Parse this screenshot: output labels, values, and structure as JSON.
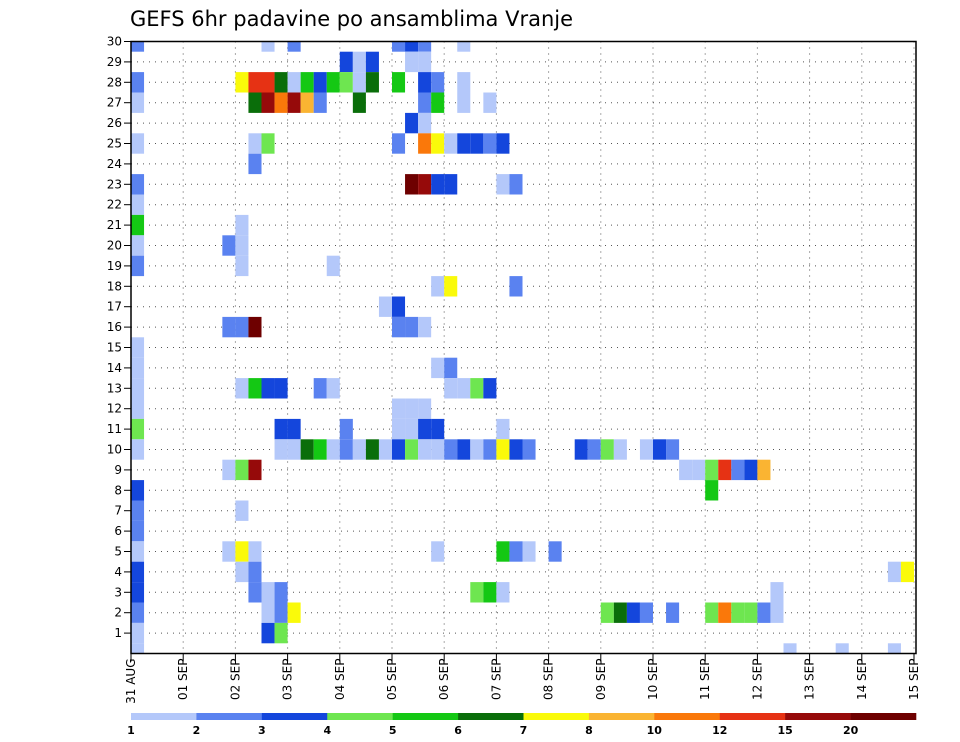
{
  "chart_data": {
    "type": "heatmap",
    "title": "GEFS 6hr padavine po ansamblima Vranje",
    "y_ticks": [
      "1",
      "2",
      "3",
      "4",
      "5",
      "6",
      "7",
      "8",
      "9",
      "10",
      "11",
      "12",
      "13",
      "14",
      "15",
      "16",
      "17",
      "18",
      "19",
      "20",
      "21",
      "22",
      "23",
      "24",
      "25",
      "26",
      "27",
      "28",
      "29",
      "30"
    ],
    "y_range": [
      0,
      30
    ],
    "x_ticks": [
      "31 AUG",
      "01 SEP",
      "02 SEP",
      "03 SEP",
      "04 SEP",
      "05 SEP",
      "06 SEP",
      "07 SEP",
      "08 SEP",
      "09 SEP",
      "10 SEP",
      "11 SEP",
      "12 SEP",
      "13 SEP",
      "14 SEP",
      "15 SEP"
    ],
    "x_step_hours": 6,
    "steps_per_day": 4,
    "num_steps": 60,
    "grid": true,
    "legend": {
      "placement": "bottom",
      "labels": [
        "1",
        "2",
        "3",
        "4",
        "5",
        "6",
        "7",
        "8",
        "10",
        "12",
        "15",
        "20"
      ],
      "colors": [
        "#B4C8FA",
        "#5A82F0",
        "#1446DC",
        "#6EE650",
        "#14C814",
        "#0A6E0A",
        "#FAFA0A",
        "#FAB432",
        "#FA780A",
        "#E63214",
        "#960A0A",
        "#6E0000"
      ]
    },
    "cells": [
      {
        "m": 30,
        "s": 1,
        "c": 1
      },
      {
        "m": 30,
        "s": 11,
        "c": 0
      },
      {
        "m": 30,
        "s": 13,
        "c": 1
      },
      {
        "m": 30,
        "s": 21,
        "c": 1
      },
      {
        "m": 30,
        "s": 22,
        "c": 2
      },
      {
        "m": 30,
        "s": 23,
        "c": 1
      },
      {
        "m": 30,
        "s": 26,
        "c": 0
      },
      {
        "m": 29,
        "s": 17,
        "c": 2
      },
      {
        "m": 29,
        "s": 18,
        "c": 0
      },
      {
        "m": 29,
        "s": 19,
        "c": 2
      },
      {
        "m": 29,
        "s": 22,
        "c": 0
      },
      {
        "m": 29,
        "s": 23,
        "c": 0
      },
      {
        "m": 28,
        "s": 1,
        "c": 1
      },
      {
        "m": 28,
        "s": 9,
        "c": 6
      },
      {
        "m": 28,
        "s": 10,
        "c": 9
      },
      {
        "m": 28,
        "s": 11,
        "c": 9
      },
      {
        "m": 28,
        "s": 12,
        "c": 5
      },
      {
        "m": 28,
        "s": 13,
        "c": 0
      },
      {
        "m": 28,
        "s": 14,
        "c": 4
      },
      {
        "m": 28,
        "s": 15,
        "c": 2
      },
      {
        "m": 28,
        "s": 16,
        "c": 4
      },
      {
        "m": 28,
        "s": 17,
        "c": 3
      },
      {
        "m": 28,
        "s": 18,
        "c": 0
      },
      {
        "m": 28,
        "s": 19,
        "c": 5
      },
      {
        "m": 28,
        "s": 21,
        "c": 4
      },
      {
        "m": 28,
        "s": 23,
        "c": 2
      },
      {
        "m": 28,
        "s": 24,
        "c": 1
      },
      {
        "m": 28,
        "s": 26,
        "c": 0
      },
      {
        "m": 27,
        "s": 1,
        "c": 0
      },
      {
        "m": 27,
        "s": 10,
        "c": 5
      },
      {
        "m": 27,
        "s": 11,
        "c": 10
      },
      {
        "m": 27,
        "s": 12,
        "c": 8
      },
      {
        "m": 27,
        "s": 13,
        "c": 10
      },
      {
        "m": 27,
        "s": 14,
        "c": 7
      },
      {
        "m": 27,
        "s": 15,
        "c": 1
      },
      {
        "m": 27,
        "s": 18,
        "c": 5
      },
      {
        "m": 27,
        "s": 23,
        "c": 1
      },
      {
        "m": 27,
        "s": 24,
        "c": 4
      },
      {
        "m": 27,
        "s": 26,
        "c": 0
      },
      {
        "m": 27,
        "s": 28,
        "c": 0
      },
      {
        "m": 26,
        "s": 22,
        "c": 2
      },
      {
        "m": 26,
        "s": 23,
        "c": 0
      },
      {
        "m": 25,
        "s": 1,
        "c": 0
      },
      {
        "m": 25,
        "s": 10,
        "c": 0
      },
      {
        "m": 25,
        "s": 11,
        "c": 3
      },
      {
        "m": 25,
        "s": 21,
        "c": 1
      },
      {
        "m": 25,
        "s": 23,
        "c": 8
      },
      {
        "m": 25,
        "s": 24,
        "c": 6
      },
      {
        "m": 25,
        "s": 25,
        "c": 0
      },
      {
        "m": 25,
        "s": 26,
        "c": 2
      },
      {
        "m": 25,
        "s": 27,
        "c": 2
      },
      {
        "m": 25,
        "s": 28,
        "c": 1
      },
      {
        "m": 25,
        "s": 29,
        "c": 2
      },
      {
        "m": 24,
        "s": 10,
        "c": 1
      },
      {
        "m": 23,
        "s": 1,
        "c": 1
      },
      {
        "m": 23,
        "s": 22,
        "c": 11
      },
      {
        "m": 23,
        "s": 23,
        "c": 10
      },
      {
        "m": 23,
        "s": 24,
        "c": 2
      },
      {
        "m": 23,
        "s": 25,
        "c": 2
      },
      {
        "m": 23,
        "s": 29,
        "c": 0
      },
      {
        "m": 23,
        "s": 30,
        "c": 1
      },
      {
        "m": 22,
        "s": 1,
        "c": 0
      },
      {
        "m": 21,
        "s": 1,
        "c": 4
      },
      {
        "m": 21,
        "s": 9,
        "c": 0
      },
      {
        "m": 20,
        "s": 1,
        "c": 0
      },
      {
        "m": 20,
        "s": 8,
        "c": 1
      },
      {
        "m": 20,
        "s": 9,
        "c": 0
      },
      {
        "m": 19,
        "s": 1,
        "c": 1
      },
      {
        "m": 19,
        "s": 9,
        "c": 0
      },
      {
        "m": 19,
        "s": 16,
        "c": 0
      },
      {
        "m": 18,
        "s": 24,
        "c": 0
      },
      {
        "m": 18,
        "s": 25,
        "c": 6
      },
      {
        "m": 18,
        "s": 30,
        "c": 1
      },
      {
        "m": 17,
        "s": 20,
        "c": 0
      },
      {
        "m": 17,
        "s": 21,
        "c": 2
      },
      {
        "m": 16,
        "s": 8,
        "c": 1
      },
      {
        "m": 16,
        "s": 9,
        "c": 1
      },
      {
        "m": 16,
        "s": 10,
        "c": 11
      },
      {
        "m": 16,
        "s": 21,
        "c": 1
      },
      {
        "m": 16,
        "s": 22,
        "c": 1
      },
      {
        "m": 16,
        "s": 23,
        "c": 0
      },
      {
        "m": 15,
        "s": 1,
        "c": 0
      },
      {
        "m": 14,
        "s": 1,
        "c": 0
      },
      {
        "m": 14,
        "s": 24,
        "c": 0
      },
      {
        "m": 14,
        "s": 25,
        "c": 1
      },
      {
        "m": 13,
        "s": 1,
        "c": 0
      },
      {
        "m": 13,
        "s": 9,
        "c": 0
      },
      {
        "m": 13,
        "s": 10,
        "c": 4
      },
      {
        "m": 13,
        "s": 11,
        "c": 2
      },
      {
        "m": 13,
        "s": 12,
        "c": 2
      },
      {
        "m": 13,
        "s": 15,
        "c": 1
      },
      {
        "m": 13,
        "s": 16,
        "c": 0
      },
      {
        "m": 13,
        "s": 25,
        "c": 0
      },
      {
        "m": 13,
        "s": 26,
        "c": 0
      },
      {
        "m": 13,
        "s": 27,
        "c": 3
      },
      {
        "m": 13,
        "s": 28,
        "c": 2
      },
      {
        "m": 12,
        "s": 1,
        "c": 0
      },
      {
        "m": 12,
        "s": 21,
        "c": 0
      },
      {
        "m": 12,
        "s": 22,
        "c": 0
      },
      {
        "m": 12,
        "s": 23,
        "c": 0
      },
      {
        "m": 11,
        "s": 1,
        "c": 3
      },
      {
        "m": 11,
        "s": 12,
        "c": 2
      },
      {
        "m": 11,
        "s": 13,
        "c": 2
      },
      {
        "m": 11,
        "s": 17,
        "c": 1
      },
      {
        "m": 11,
        "s": 21,
        "c": 0
      },
      {
        "m": 11,
        "s": 22,
        "c": 0
      },
      {
        "m": 11,
        "s": 23,
        "c": 2
      },
      {
        "m": 11,
        "s": 24,
        "c": 2
      },
      {
        "m": 11,
        "s": 29,
        "c": 0
      },
      {
        "m": 10,
        "s": 1,
        "c": 0
      },
      {
        "m": 10,
        "s": 12,
        "c": 0
      },
      {
        "m": 10,
        "s": 13,
        "c": 0
      },
      {
        "m": 10,
        "s": 14,
        "c": 5
      },
      {
        "m": 10,
        "s": 15,
        "c": 4
      },
      {
        "m": 10,
        "s": 16,
        "c": 0
      },
      {
        "m": 10,
        "s": 17,
        "c": 1
      },
      {
        "m": 10,
        "s": 18,
        "c": 0
      },
      {
        "m": 10,
        "s": 19,
        "c": 5
      },
      {
        "m": 10,
        "s": 20,
        "c": 0
      },
      {
        "m": 10,
        "s": 21,
        "c": 2
      },
      {
        "m": 10,
        "s": 22,
        "c": 3
      },
      {
        "m": 10,
        "s": 23,
        "c": 0
      },
      {
        "m": 10,
        "s": 24,
        "c": 0
      },
      {
        "m": 10,
        "s": 25,
        "c": 1
      },
      {
        "m": 10,
        "s": 26,
        "c": 2
      },
      {
        "m": 10,
        "s": 27,
        "c": 0
      },
      {
        "m": 10,
        "s": 28,
        "c": 1
      },
      {
        "m": 10,
        "s": 29,
        "c": 6
      },
      {
        "m": 10,
        "s": 30,
        "c": 2
      },
      {
        "m": 10,
        "s": 31,
        "c": 1
      },
      {
        "m": 10,
        "s": 35,
        "c": 2
      },
      {
        "m": 10,
        "s": 36,
        "c": 1
      },
      {
        "m": 10,
        "s": 37,
        "c": 3
      },
      {
        "m": 10,
        "s": 38,
        "c": 0
      },
      {
        "m": 10,
        "s": 40,
        "c": 0
      },
      {
        "m": 10,
        "s": 41,
        "c": 2
      },
      {
        "m": 10,
        "s": 42,
        "c": 1
      },
      {
        "m": 9,
        "s": 8,
        "c": 0
      },
      {
        "m": 9,
        "s": 9,
        "c": 3
      },
      {
        "m": 9,
        "s": 10,
        "c": 10
      },
      {
        "m": 9,
        "s": 43,
        "c": 0
      },
      {
        "m": 9,
        "s": 44,
        "c": 0
      },
      {
        "m": 9,
        "s": 45,
        "c": 3
      },
      {
        "m": 9,
        "s": 46,
        "c": 9
      },
      {
        "m": 9,
        "s": 47,
        "c": 1
      },
      {
        "m": 9,
        "s": 48,
        "c": 2
      },
      {
        "m": 9,
        "s": 49,
        "c": 7
      },
      {
        "m": 8,
        "s": 1,
        "c": 2
      },
      {
        "m": 8,
        "s": 45,
        "c": 4
      },
      {
        "m": 7,
        "s": 1,
        "c": 1
      },
      {
        "m": 7,
        "s": 9,
        "c": 0
      },
      {
        "m": 6,
        "s": 1,
        "c": 1
      },
      {
        "m": 5,
        "s": 1,
        "c": 0
      },
      {
        "m": 5,
        "s": 8,
        "c": 0
      },
      {
        "m": 5,
        "s": 9,
        "c": 6
      },
      {
        "m": 5,
        "s": 10,
        "c": 0
      },
      {
        "m": 5,
        "s": 24,
        "c": 0
      },
      {
        "m": 5,
        "s": 29,
        "c": 4
      },
      {
        "m": 5,
        "s": 30,
        "c": 1
      },
      {
        "m": 5,
        "s": 31,
        "c": 0
      },
      {
        "m": 5,
        "s": 33,
        "c": 1
      },
      {
        "m": 4,
        "s": 1,
        "c": 2
      },
      {
        "m": 4,
        "s": 9,
        "c": 0
      },
      {
        "m": 4,
        "s": 10,
        "c": 1
      },
      {
        "m": 4,
        "s": 59,
        "c": 0
      },
      {
        "m": 4,
        "s": 60,
        "c": 6
      },
      {
        "m": 3,
        "s": 1,
        "c": 2
      },
      {
        "m": 3,
        "s": 10,
        "c": 1
      },
      {
        "m": 3,
        "s": 11,
        "c": 0
      },
      {
        "m": 3,
        "s": 12,
        "c": 1
      },
      {
        "m": 3,
        "s": 27,
        "c": 3
      },
      {
        "m": 3,
        "s": 28,
        "c": 4
      },
      {
        "m": 3,
        "s": 29,
        "c": 0
      },
      {
        "m": 3,
        "s": 50,
        "c": 0
      },
      {
        "m": 2,
        "s": 1,
        "c": 1
      },
      {
        "m": 2,
        "s": 11,
        "c": 0
      },
      {
        "m": 2,
        "s": 12,
        "c": 1
      },
      {
        "m": 2,
        "s": 13,
        "c": 6
      },
      {
        "m": 2,
        "s": 37,
        "c": 3
      },
      {
        "m": 2,
        "s": 38,
        "c": 5
      },
      {
        "m": 2,
        "s": 39,
        "c": 2
      },
      {
        "m": 2,
        "s": 40,
        "c": 1
      },
      {
        "m": 2,
        "s": 42,
        "c": 1
      },
      {
        "m": 2,
        "s": 45,
        "c": 3
      },
      {
        "m": 2,
        "s": 46,
        "c": 8
      },
      {
        "m": 2,
        "s": 47,
        "c": 3
      },
      {
        "m": 2,
        "s": 48,
        "c": 3
      },
      {
        "m": 2,
        "s": 49,
        "c": 1
      },
      {
        "m": 2,
        "s": 50,
        "c": 0
      },
      {
        "m": 1,
        "s": 1,
        "c": 0
      },
      {
        "m": 1,
        "s": 11,
        "c": 2
      },
      {
        "m": 1,
        "s": 12,
        "c": 3
      },
      {
        "m": 0,
        "s": 1,
        "c": 0
      },
      {
        "m": 0,
        "s": 51,
        "c": 0
      },
      {
        "m": 0,
        "s": 55,
        "c": 0
      },
      {
        "m": 0,
        "s": 59,
        "c": 0
      }
    ]
  }
}
